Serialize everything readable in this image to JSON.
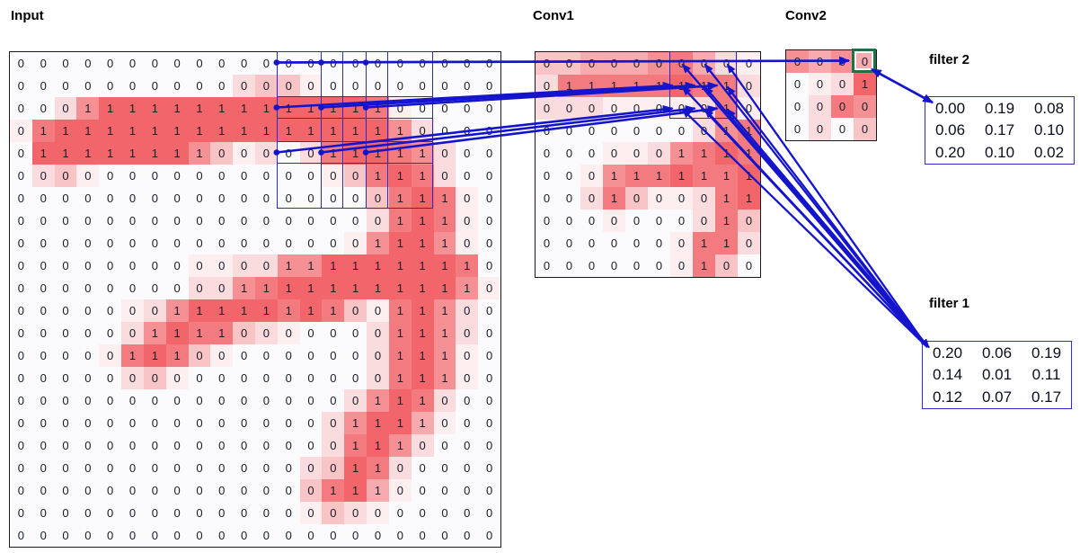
{
  "heat_ramp": [
    "#fbfbfd",
    "#fdeef0",
    "#fbdcde",
    "#f9c4c6",
    "#f7abae",
    "#f59194",
    "#f37b7f",
    "#f2656a"
  ],
  "colors": {
    "line_blue": "#1414cc",
    "rf_box_blue": "#2a2ad4",
    "filter_border_blue": "#2f2fd0",
    "grid_border": "#1a1a1a",
    "digit": "#171c26",
    "highlight_green": "#1f7244",
    "background": "#ffffff"
  },
  "input_grid": {
    "label": "Input",
    "rows": 22,
    "cols": 22,
    "values": [
      "0000000000000000000000",
      "0000000000000000000000",
      "0001111111111111100000",
      "0111111111111111110000",
      "0111111110000011111000",
      "0000000000000000111000",
      "0000000000000000011100",
      "0000000000000000011100",
      "0000000000000000111100",
      "0000000000001111111110",
      "0000000000111111111110",
      "0000000111111110011100",
      "0000001111000000011100",
      "0000011100000000011100",
      "0000000000000000011100",
      "0000000000000000111000",
      "0000000000000001111000",
      "0000000000000001110000",
      "0000000000000001100000",
      "0000000000000011100000",
      "0000000000000000000000",
      "0000000000000000000000"
    ],
    "shades": [
      "0000000000000000000000",
      "0000000000233100000000",
      "0025777777777777610000",
      "1677777777777777752000",
      "0777777753120267765200",
      "0231000000000013676200",
      "0000000000000000367610",
      "0000000000000000267610",
      "0000000000000001577510",
      "0000000011225577777760",
      "0000000022567777777751",
      "0000012577776763167520",
      "0000025766321000267520",
      "0000167631000000267510",
      "0000023100000000267510",
      "0000000000000002576200",
      "0000000000000025774100",
      "0000000000000026752000",
      "0000000000000237620000",
      "0000000000000367410000",
      "0000000000000132100000",
      "0000000000000000000000"
    ]
  },
  "conv1_grid": {
    "label": "Conv1",
    "rows": 10,
    "cols": 10,
    "values": [
      "0000000000",
      "0111111110",
      "0000000010",
      "0000000011",
      "0000001111",
      "0001111111",
      "0001000011",
      "0000000010",
      "0000000110",
      "0000000100"
    ],
    "shades": [
      "3344456421",
      "2666667662",
      "2221111261",
      "0000000256",
      "0001125676",
      "0015667667",
      "0026311267",
      "0001000263",
      "0000001662",
      "0000001630"
    ]
  },
  "conv2_grid": {
    "label": "Conv2",
    "rows": 4,
    "cols": 4,
    "values": [
      "0000",
      "0001",
      "0000",
      "0000"
    ],
    "shades": [
      "5454",
      "0127",
      "0265",
      "0203"
    ],
    "highlight_cell": {
      "row": 0,
      "col": 3
    }
  },
  "filter1": {
    "label": "filter 1",
    "values": [
      [
        "0.20",
        "0.06",
        "0.19"
      ],
      [
        "0.14",
        "0.01",
        "0.11"
      ],
      [
        "0.12",
        "0.07",
        "0.17"
      ]
    ]
  },
  "filter2": {
    "label": "filter 2",
    "values": [
      [
        "0.00",
        "0.19",
        "0.08"
      ],
      [
        "0.06",
        "0.17",
        "0.10"
      ],
      [
        "0.20",
        "0.10",
        "0.02"
      ]
    ]
  }
}
